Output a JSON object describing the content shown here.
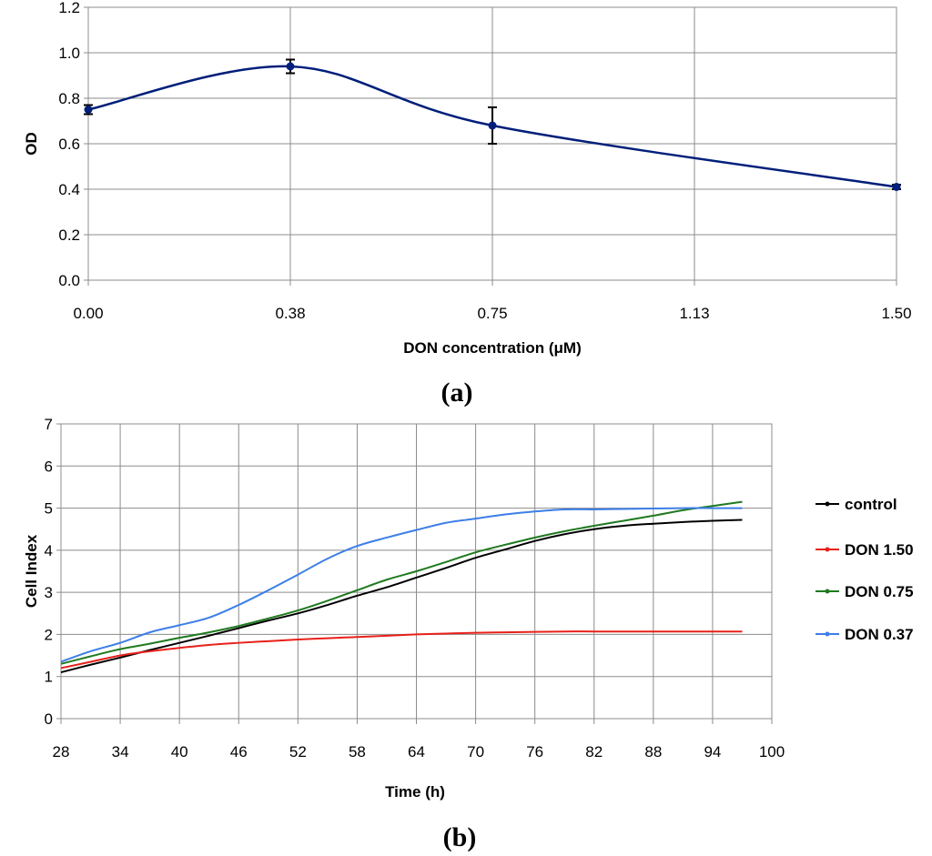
{
  "chart_data": [
    {
      "type": "line",
      "panel_label": "a",
      "xlabel": "DON concentration (μM)",
      "ylabel": "OD",
      "xlim": [
        0,
        1.5
      ],
      "ylim": [
        0,
        1.2
      ],
      "x_ticks": [
        "0.00",
        "0.38",
        "0.75",
        "1.13",
        "1.50"
      ],
      "x_tick_values": [
        0,
        0.375,
        0.75,
        1.125,
        1.5
      ],
      "y_ticks": [
        "0.0",
        "0.2",
        "0.4",
        "0.6",
        "0.8",
        "1.0",
        "1.2"
      ],
      "y_tick_values": [
        0,
        0.2,
        0.4,
        0.6,
        0.8,
        1.0,
        1.2
      ],
      "grid": true,
      "series": [
        {
          "color": "#001f7a",
          "x": [
            0,
            0.375,
            0.75,
            1.5
          ],
          "y": [
            0.75,
            0.94,
            0.68,
            0.41
          ],
          "error": [
            0.02,
            0.03,
            0.08,
            0.01
          ]
        }
      ]
    },
    {
      "type": "line",
      "panel_label": "b",
      "xlabel": "Time (h)",
      "ylabel": "Cell Index",
      "xlim": [
        28,
        100
      ],
      "ylim": [
        0,
        7
      ],
      "x_ticks": [
        "28",
        "34",
        "40",
        "46",
        "52",
        "58",
        "64",
        "70",
        "76",
        "82",
        "88",
        "94",
        "100"
      ],
      "x_tick_values": [
        28,
        34,
        40,
        46,
        52,
        58,
        64,
        70,
        76,
        82,
        88,
        94,
        100
      ],
      "y_ticks": [
        "0",
        "1",
        "2",
        "3",
        "4",
        "5",
        "6",
        "7"
      ],
      "y_tick_values": [
        0,
        1,
        2,
        3,
        4,
        5,
        6,
        7
      ],
      "grid": true,
      "legend_position": "right",
      "series": [
        {
          "name": "control",
          "color": "#000000",
          "x": [
            28,
            31,
            34,
            37,
            40,
            43,
            46,
            49,
            52,
            55,
            58,
            61,
            64,
            67,
            70,
            73,
            76,
            79,
            82,
            85,
            88,
            91,
            94,
            97
          ],
          "y": [
            1.1,
            1.28,
            1.45,
            1.63,
            1.8,
            1.97,
            2.15,
            2.33,
            2.5,
            2.7,
            2.92,
            3.12,
            3.35,
            3.58,
            3.82,
            4.02,
            4.22,
            4.38,
            4.5,
            4.58,
            4.63,
            4.67,
            4.7,
            4.72
          ]
        },
        {
          "name": "DON  1.50",
          "color": "#e8201a",
          "x": [
            28,
            31,
            34,
            37,
            40,
            43,
            46,
            49,
            52,
            55,
            58,
            61,
            64,
            67,
            70,
            73,
            76,
            79,
            82,
            85,
            88,
            91,
            94,
            97
          ],
          "y": [
            1.2,
            1.35,
            1.5,
            1.6,
            1.68,
            1.75,
            1.8,
            1.84,
            1.88,
            1.91,
            1.94,
            1.97,
            2.0,
            2.02,
            2.04,
            2.05,
            2.06,
            2.07,
            2.07,
            2.07,
            2.07,
            2.07,
            2.07,
            2.07
          ]
        },
        {
          "name": "DON  0.75",
          "color": "#1f7a1f",
          "x": [
            28,
            31,
            34,
            37,
            40,
            43,
            46,
            49,
            52,
            55,
            58,
            61,
            64,
            67,
            70,
            73,
            76,
            79,
            82,
            85,
            88,
            91,
            94,
            97
          ],
          "y": [
            1.3,
            1.48,
            1.65,
            1.78,
            1.92,
            2.05,
            2.2,
            2.38,
            2.57,
            2.8,
            3.05,
            3.3,
            3.5,
            3.72,
            3.95,
            4.13,
            4.3,
            4.45,
            4.58,
            4.7,
            4.82,
            4.95,
            5.05,
            5.15
          ]
        },
        {
          "name": "DON  0.37",
          "color": "#3d7ee8",
          "x": [
            28,
            31,
            34,
            37,
            40,
            43,
            46,
            49,
            52,
            55,
            58,
            61,
            64,
            67,
            70,
            73,
            76,
            79,
            82,
            85,
            88,
            91,
            94,
            97
          ],
          "y": [
            1.35,
            1.6,
            1.8,
            2.05,
            2.22,
            2.4,
            2.7,
            3.05,
            3.42,
            3.8,
            4.1,
            4.3,
            4.48,
            4.65,
            4.75,
            4.85,
            4.92,
            4.97,
            4.97,
            4.98,
            4.99,
            5.0,
            5.0,
            5.0
          ]
        }
      ]
    }
  ]
}
